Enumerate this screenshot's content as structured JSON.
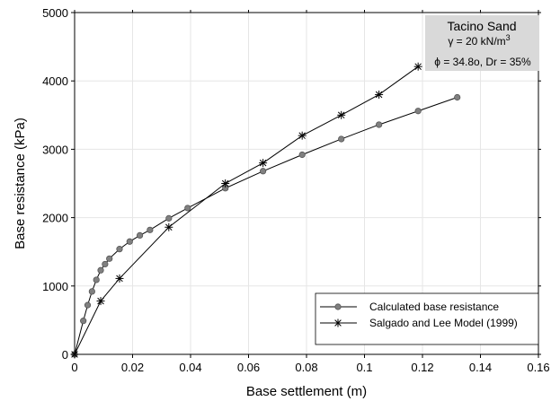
{
  "chart_data": {
    "type": "line",
    "xlabel": "Base settlement (m)",
    "ylabel": "Base resistance (kPa)",
    "xlim": [
      0,
      0.16
    ],
    "ylim": [
      0,
      5000
    ],
    "x_ticks": [
      0,
      0.02,
      0.04,
      0.06,
      0.08,
      0.1,
      0.12,
      0.14,
      0.16
    ],
    "x_tick_labels": [
      "0",
      "0.02",
      "0.04",
      "0.06",
      "0.08",
      "0.1",
      "0.12",
      "0.14",
      "0.16"
    ],
    "y_ticks": [
      0,
      1000,
      2000,
      3000,
      4000,
      5000
    ],
    "y_tick_labels": [
      "0",
      "1000",
      "2000",
      "3000",
      "4000",
      "5000"
    ],
    "grid": true,
    "legend_position": "bottom-right",
    "annotation": {
      "title": "Tacino Sand",
      "gamma_line": "γ = 20 kN/m",
      "gamma_sup": "3",
      "phi_line": "ϕ = 34.8o, Dr = 35%"
    },
    "series": [
      {
        "name": "Calculated base resistance",
        "marker": "circle",
        "color": "#808080",
        "x": [
          0,
          0.003,
          0.0045,
          0.006,
          0.0075,
          0.009,
          0.0105,
          0.012,
          0.0155,
          0.019,
          0.0225,
          0.026,
          0.0325,
          0.039,
          0.052,
          0.065,
          0.0785,
          0.092,
          0.105,
          0.1185,
          0.132
        ],
        "y": [
          0,
          490,
          720,
          920,
          1090,
          1230,
          1320,
          1400,
          1540,
          1650,
          1740,
          1820,
          1990,
          2140,
          2430,
          2680,
          2920,
          3150,
          3360,
          3560,
          3760
        ]
      },
      {
        "name": "Salgado and Lee Model (1999)",
        "marker": "asterisk",
        "color": "#000000",
        "x": [
          0,
          0.009,
          0.0155,
          0.0325,
          0.052,
          0.065,
          0.0785,
          0.092,
          0.105,
          0.1185
        ],
        "y": [
          0,
          780,
          1110,
          1860,
          2500,
          2800,
          3200,
          3500,
          3800,
          4210
        ]
      }
    ]
  }
}
